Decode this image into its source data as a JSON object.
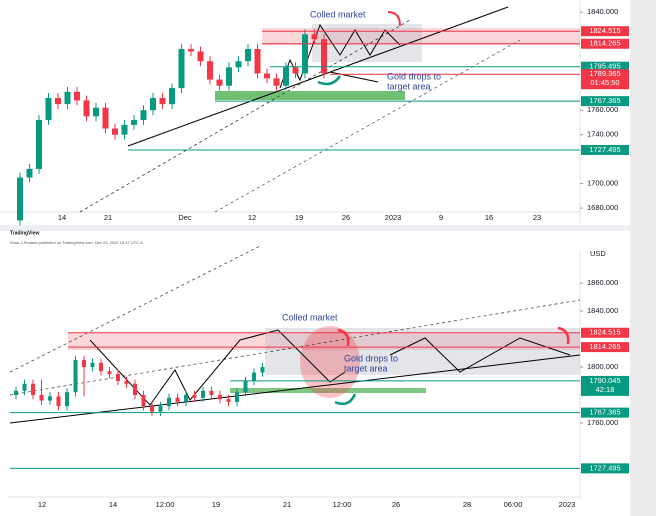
{
  "header": {
    "brand": "TradingView",
    "attribution": "Ross-J-Stuland published on TradingView.com, Dec 23, 2022 15:17 UTC 8"
  },
  "chart_data": [
    {
      "type": "candlestick",
      "open": [
        1670,
        1705,
        1712,
        1752,
        1770,
        1765,
        1775,
        1768,
        1755,
        1762,
        1745,
        1740,
        1748,
        1752,
        1760,
        1770,
        1765,
        1778,
        1810,
        1808,
        1800,
        1785,
        1780,
        1795,
        1800,
        1810,
        1790,
        1786,
        1780,
        1795,
        1790,
        1822,
        1818
      ],
      "high": [
        1709,
        1716,
        1756,
        1774,
        1774,
        1779,
        1779,
        1772,
        1766,
        1766,
        1749,
        1752,
        1756,
        1764,
        1774,
        1774,
        1782,
        1814,
        1814,
        1812,
        1804,
        1789,
        1799,
        1804,
        1814,
        1814,
        1794,
        1790,
        1799,
        1799,
        1826,
        1826,
        1822
      ],
      "low": [
        1666,
        1701,
        1708,
        1748,
        1761,
        1761,
        1764,
        1751,
        1751,
        1741,
        1736,
        1736,
        1744,
        1748,
        1756,
        1761,
        1761,
        1774,
        1804,
        1796,
        1781,
        1776,
        1776,
        1791,
        1796,
        1786,
        1782,
        1776,
        1776,
        1786,
        1786,
        1814,
        1786
      ],
      "close": [
        1705,
        1712,
        1752,
        1770,
        1765,
        1775,
        1768,
        1755,
        1762,
        1745,
        1740,
        1748,
        1752,
        1760,
        1770,
        1765,
        1778,
        1810,
        1808,
        1800,
        1785,
        1780,
        1795,
        1800,
        1810,
        1790,
        1786,
        1780,
        1795,
        1790,
        1822,
        1818,
        1790
      ],
      "up_color": "#089981",
      "down_color": "#f23645",
      "ylim": [
        1676,
        1850
      ],
      "yticks": [
        {
          "value": 1840,
          "label": "1840.000"
        },
        {
          "value": 1760,
          "label": "1760.000"
        },
        {
          "value": 1740,
          "label": "1740.000"
        },
        {
          "value": 1700,
          "label": "1700.000"
        },
        {
          "value": 1680,
          "label": "1680.000"
        }
      ],
      "xtick_labels": [
        "14",
        "21",
        "Dec",
        "12",
        "19",
        "26",
        "2023",
        "9",
        "16",
        "23"
      ],
      "levels": [
        {
          "value": 1824.515,
          "color": "#f23645"
        },
        {
          "value": 1814.265,
          "color": "#f23645"
        },
        {
          "value": 1795.495,
          "color": "#089981"
        },
        {
          "value": 1789.365,
          "color": "#f23645",
          "timer": "01:45:50"
        },
        {
          "value": 1767.365,
          "color": "#089981"
        },
        {
          "value": 1727.495,
          "color": "#089981"
        }
      ],
      "annotation_title": "Colled market",
      "annotation_lines": [
        "Gold drops to",
        "target area"
      ]
    },
    {
      "type": "candlestick",
      "open": [
        1780,
        1783,
        1788,
        1780,
        1776,
        1779,
        1772,
        1782,
        1805,
        1800,
        1803,
        1797,
        1795,
        1790,
        1788,
        1780,
        1772,
        1768,
        1772,
        1778,
        1775,
        1780,
        1778,
        1783,
        1780,
        1777,
        1775,
        1782,
        1790,
        1796
      ],
      "high": [
        1786,
        1791,
        1791,
        1791,
        1782,
        1782,
        1785,
        1808,
        1808,
        1806,
        1806,
        1800,
        1798,
        1793,
        1791,
        1783,
        1775,
        1775,
        1781,
        1781,
        1783,
        1783,
        1786,
        1786,
        1783,
        1780,
        1785,
        1793,
        1799,
        1803
      ],
      "low": [
        1777,
        1780,
        1777,
        1773,
        1773,
        1769,
        1769,
        1779,
        1779,
        1797,
        1794,
        1792,
        1787,
        1785,
        1777,
        1769,
        1765,
        1765,
        1769,
        1772,
        1772,
        1775,
        1775,
        1777,
        1774,
        1772,
        1772,
        1779,
        1787,
        1793
      ],
      "close": [
        1783,
        1788,
        1780,
        1776,
        1779,
        1772,
        1782,
        1805,
        1800,
        1803,
        1797,
        1795,
        1790,
        1788,
        1780,
        1772,
        1768,
        1772,
        1778,
        1775,
        1780,
        1778,
        1783,
        1780,
        1777,
        1775,
        1782,
        1790,
        1796,
        1800
      ],
      "up_color": "#089981",
      "down_color": "#f23645",
      "ylim": [
        1707,
        1878
      ],
      "axis_title": "USD",
      "yticks": [
        {
          "value": 1860,
          "label": "1860.000"
        },
        {
          "value": 1840,
          "label": "1840.000"
        },
        {
          "value": 1800,
          "label": "1800.000"
        },
        {
          "value": 1760,
          "label": "1760.000"
        }
      ],
      "xtick_labels": [
        "12",
        "14",
        "12:00",
        "19",
        "21",
        "12:00",
        "26",
        "28",
        "06:00",
        "2023"
      ],
      "levels": [
        {
          "value": 1824.515,
          "color": "#f23645"
        },
        {
          "value": 1814.265,
          "color": "#f23645"
        },
        {
          "value": 1790.045,
          "color": "#089981",
          "timer": "42:18"
        },
        {
          "value": 1767.365,
          "color": "#089981"
        },
        {
          "value": 1727.495,
          "color": "#089981"
        }
      ],
      "annotation_title": "Colled market",
      "annotation_lines": [
        "Gold drops to",
        "target area"
      ]
    }
  ]
}
